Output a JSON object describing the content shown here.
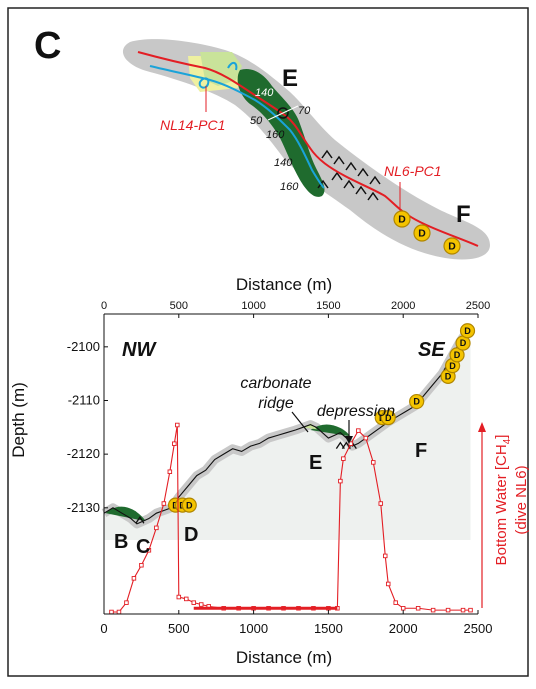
{
  "panel_label": "C",
  "colors": {
    "frame": "#222222",
    "track_gray": "#c8c8c8",
    "dark_green": "#1f6b2e",
    "light_green": "#c9e39a",
    "pale_yellow": "#eef0a0",
    "track_red": "#e31e24",
    "track_blue": "#1aa3d9",
    "marker_fill": "#f4c400",
    "marker_stroke": "#b08600",
    "concentration_red": "#e31e24",
    "profile_fill": "#eef1ef",
    "label_red": "#e31e24",
    "black": "#111111"
  },
  "map": {
    "labels": {
      "E": "E",
      "F": "F",
      "core_nl14": "NL14-PC1",
      "core_nl6": "NL6-PC1"
    },
    "depth_contours": [
      "140",
      "70",
      "50",
      "160",
      "140",
      "160"
    ],
    "marker_letter": "D"
  },
  "profile": {
    "top_axis_label": "Distance (m)",
    "bottom_axis_label": "Distance (m)",
    "y_axis_label": "Depth (m)",
    "right_axis_label_line1": "Bottom Water [CH",
    "right_axis_label_sub": "4",
    "right_axis_label_end": "]",
    "right_axis_label_line2": "(dive NL6)",
    "x_ticks": [
      "0",
      "500",
      "1000",
      "1500",
      "2000",
      "2500"
    ],
    "y_ticks": [
      "-2100",
      "-2110",
      "-2120",
      "-2130"
    ],
    "direction_left": "NW",
    "direction_right": "SE",
    "annotation_carbonate_line1": "carbonate",
    "annotation_carbonate_line2": "ridge",
    "annotation_depression": "depression",
    "site_labels": [
      "B",
      "C",
      "D",
      "E",
      "F"
    ],
    "marker_letter": "D"
  },
  "chart_data": {
    "type": "line",
    "title": "",
    "xlabel": "Distance (m)",
    "ylabel": "Depth (m)",
    "xlim": [
      0,
      2500
    ],
    "ylim": [
      -2136,
      -2095
    ],
    "grid": false,
    "series": [
      {
        "x": [
          0,
          60,
          120,
          180,
          220,
          260,
          300,
          350,
          400,
          450,
          500,
          560,
          620,
          680,
          740,
          800,
          860,
          920,
          980,
          1040,
          1100,
          1160,
          1220,
          1280,
          1330,
          1380,
          1420,
          1460,
          1500,
          1540,
          1580,
          1620,
          1660,
          1700,
          1750,
          1800,
          1850,
          1900,
          1960,
          2020,
          2080,
          2140,
          2200,
          2260,
          2320,
          2380,
          2430,
          2450
        ],
        "y": [
          -2131,
          -2130,
          -2131,
          -2132,
          -2133,
          -2132.5,
          -2132,
          -2131,
          -2130.5,
          -2130,
          -2128,
          -2126,
          -2124,
          -2123,
          -2121,
          -2120,
          -2119,
          -2119.5,
          -2118.5,
          -2118,
          -2117,
          -2116.5,
          -2116,
          -2115.5,
          -2115,
          -2114.5,
          -2115,
          -2116,
          -2117,
          -2116.5,
          -2116,
          -2117,
          -2118.5,
          -2118,
          -2117,
          -2116,
          -2115,
          -2114,
          -2113,
          -2112,
          -2111,
          -2109,
          -2107,
          -2105,
          -2102,
          -2099,
          -2097,
          -2096
        ]
      },
      {
        "x": [
          50,
          100,
          150,
          200,
          250,
          300,
          350,
          400,
          440,
          470,
          490,
          500,
          550,
          600,
          650,
          700,
          800,
          900,
          1000,
          1100,
          1200,
          1300,
          1400,
          1500,
          1560,
          1580,
          1600,
          1650,
          1700,
          1750,
          1800,
          1850,
          1880,
          1900,
          1950,
          2000,
          2100,
          2200,
          2300,
          2400,
          2450
        ],
        "values": [
          0,
          0,
          5,
          18,
          25,
          33,
          45,
          58,
          75,
          90,
          100,
          8,
          7,
          5,
          4,
          3,
          2,
          2,
          2,
          2,
          2,
          2,
          2,
          2,
          2,
          70,
          82,
          90,
          97,
          93,
          80,
          58,
          30,
          15,
          5,
          2,
          2,
          1,
          1,
          1,
          1
        ]
      }
    ]
  }
}
